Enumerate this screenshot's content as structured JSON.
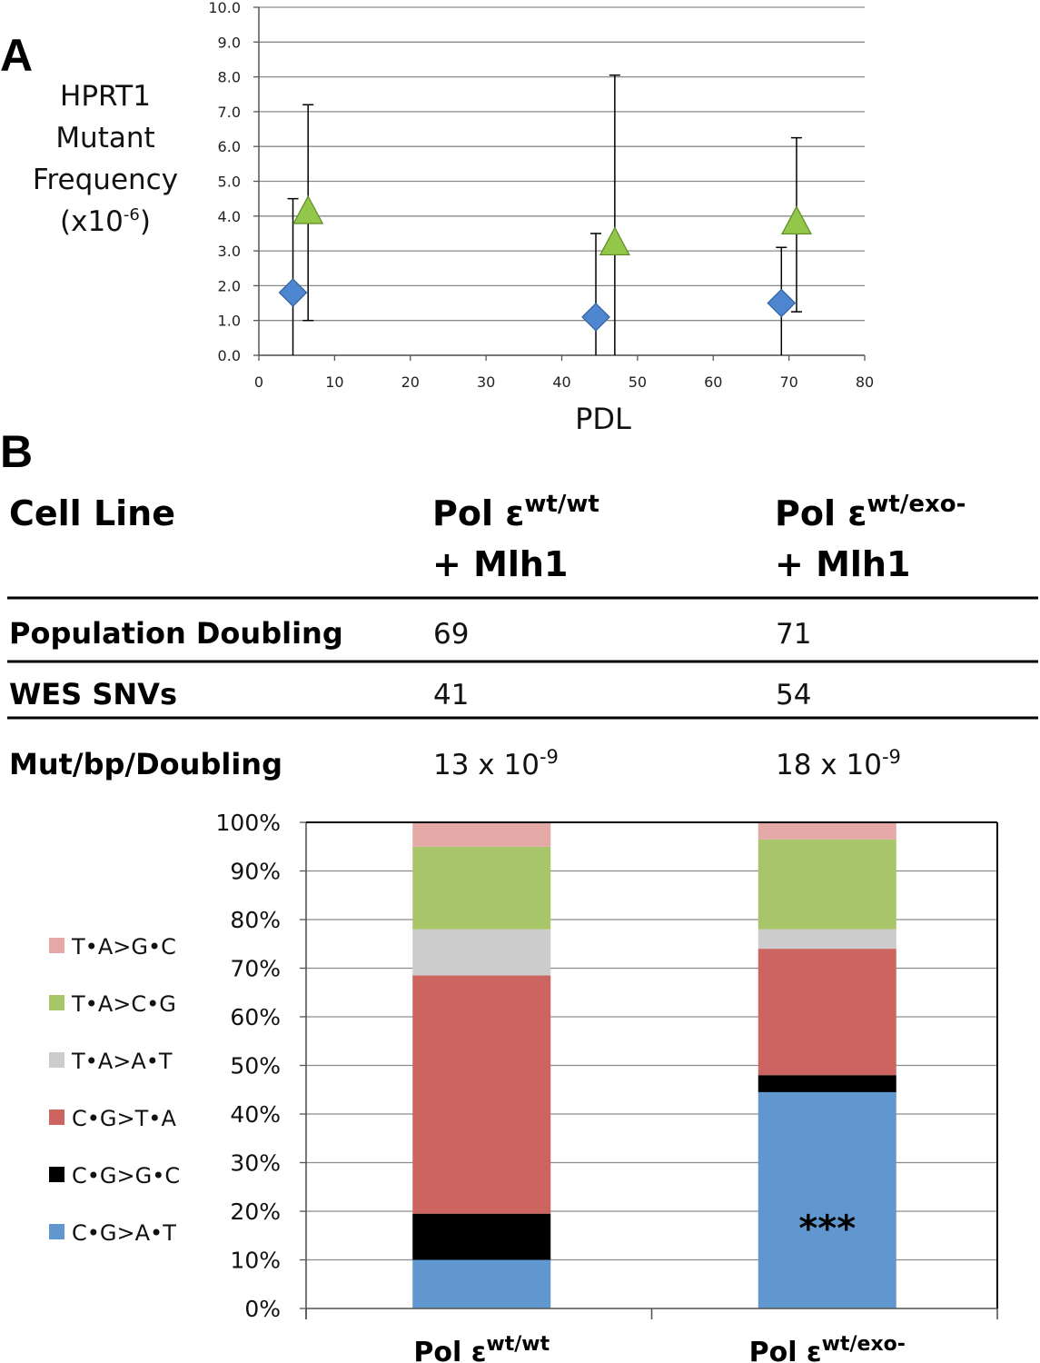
{
  "panel_a": {
    "letter": "A",
    "ylabel_lines": [
      "HPRT1",
      "Mutant",
      "Frequency"
    ],
    "ylabel_units": {
      "prefix": "(x10",
      "sup": "-6",
      "suffix": ")"
    }
  },
  "panel_b": {
    "letter": "B",
    "table": {
      "header": {
        "label": "Cell Line",
        "col1": {
          "main": "Pol ε",
          "sup": "wt/wt",
          "line2": "+ Mlh1"
        },
        "col2": {
          "main": "Pol ε",
          "sup": "wt/exo-",
          "line2": "+ Mlh1"
        }
      },
      "rows": [
        {
          "label": "Population Doubling",
          "v1": "69",
          "v2": "71"
        },
        {
          "label": "WES SNVs",
          "v1": "41",
          "v2": "54"
        }
      ],
      "mut_row": {
        "label": "Mut/bp/Doubling",
        "v1": {
          "main": "13 x 10",
          "sup": "-9"
        },
        "v2": {
          "main": "18 x 10",
          "sup": "-9"
        }
      }
    },
    "significance": "***"
  },
  "colors": {
    "diamond": "#4f86d0",
    "triangle": "#92c74a",
    "TA_GC": "#e4a8a6",
    "TA_CG": "#a9c56a",
    "TA_AT": "#cccccc",
    "CG_TA": "#cc6560",
    "CG_GC": "#000000",
    "CG_AT": "#6097ce"
  },
  "chart_data": [
    {
      "type": "scatter",
      "title": "",
      "xlabel": "PDL",
      "ylabel": "HPRT1 Mutant Frequency (x10-6)",
      "xlim": [
        0,
        80
      ],
      "ylim": [
        0,
        10
      ],
      "xticks": [
        "0",
        "10",
        "20",
        "30",
        "40",
        "50",
        "60",
        "70",
        "80"
      ],
      "yticks": [
        "0.0",
        "1.0",
        "2.0",
        "3.0",
        "4.0",
        "5.0",
        "6.0",
        "7.0",
        "8.0",
        "9.0",
        "10.0"
      ],
      "grid": true,
      "series": [
        {
          "name": "Pol ε wt/wt + Mlh1",
          "marker": "diamond",
          "x": [
            4.5,
            44.5,
            69
          ],
          "y": [
            1.8,
            1.1,
            1.5
          ],
          "err_low": [
            0.0,
            0.0,
            0.0
          ],
          "err_high": [
            4.5,
            3.5,
            3.1
          ]
        },
        {
          "name": "Pol ε wt/exo- + Mlh1",
          "marker": "triangle",
          "x": [
            6.5,
            47,
            71
          ],
          "y": [
            4.1,
            3.2,
            3.8
          ],
          "err_low": [
            1.0,
            0.0,
            1.25
          ],
          "err_high": [
            7.2,
            8.05,
            6.25
          ]
        }
      ]
    },
    {
      "type": "bar",
      "stacked": true,
      "title": "",
      "xlabel": "",
      "ylabel": "",
      "ylim": [
        0,
        100
      ],
      "yticks": [
        "0%",
        "10%",
        "20%",
        "30%",
        "40%",
        "50%",
        "60%",
        "70%",
        "80%",
        "90%",
        "100%"
      ],
      "categories": [
        {
          "main": "Pol ε",
          "sup": "wt/wt"
        },
        {
          "main": "Pol ε",
          "sup": "wt/exo-"
        }
      ],
      "legend_position": "left",
      "series": [
        {
          "name": "C•G>A•T",
          "key": "CG_AT",
          "values": [
            10,
            44.5
          ]
        },
        {
          "name": "C•G>G•C",
          "key": "CG_GC",
          "values": [
            9.5,
            3.5
          ]
        },
        {
          "name": "C•G>T•A",
          "key": "CG_TA",
          "values": [
            49,
            26
          ]
        },
        {
          "name": "T•A>A•T",
          "key": "TA_AT",
          "values": [
            9.5,
            4
          ]
        },
        {
          "name": "T•A>C•G",
          "key": "TA_CG",
          "values": [
            17,
            18.5
          ]
        },
        {
          "name": "T•A>G•C",
          "key": "TA_GC",
          "values": [
            5,
            3.5
          ]
        }
      ],
      "legend_order": [
        "TA_GC",
        "TA_CG",
        "TA_AT",
        "CG_TA",
        "CG_GC",
        "CG_AT"
      ]
    }
  ]
}
